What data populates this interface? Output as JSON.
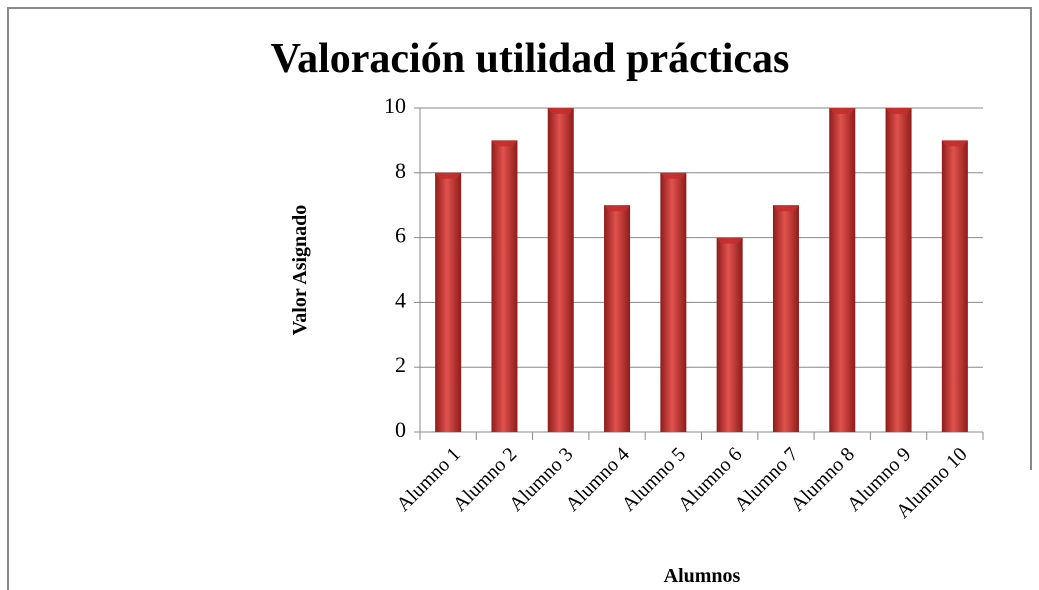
{
  "chart_data": {
    "type": "bar",
    "title": "Valoración utilidad prácticas",
    "x_label": "Alumnos",
    "y_label": "Valor Asignado",
    "categories": [
      "Alumno 1",
      "Alumno 2",
      "Alumno 3",
      "Alumno 4",
      "Alumno 5",
      "Alumno 6",
      "Alumno 7",
      "Alumno 8",
      "Alumno 9",
      "Alumno 10"
    ],
    "values": [
      8,
      9,
      10,
      7,
      8,
      6,
      7,
      10,
      10,
      9
    ],
    "color": "#c0302e",
    "ylim": [
      0,
      10
    ],
    "yticks": [
      0,
      2,
      4,
      6,
      8,
      10
    ],
    "grid": true
  }
}
